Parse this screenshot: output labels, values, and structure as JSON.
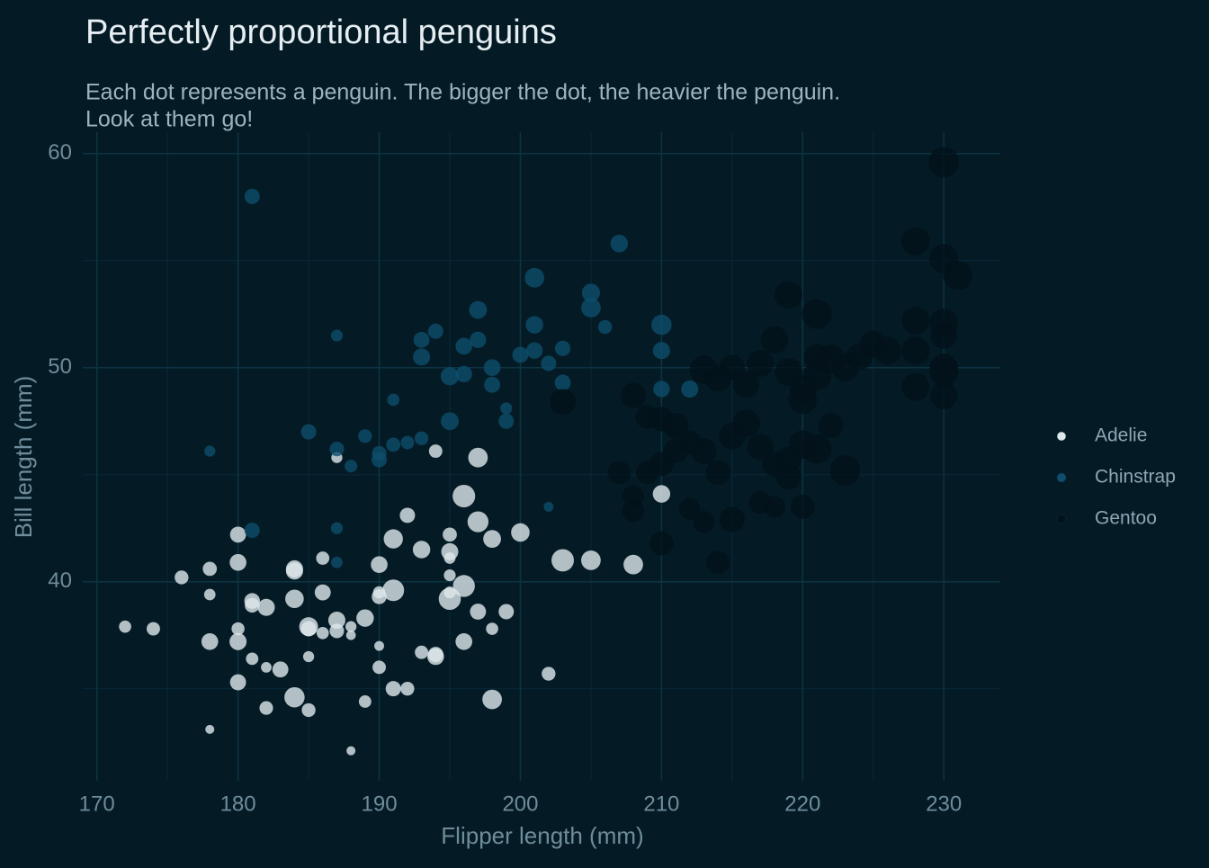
{
  "chart_data": {
    "type": "scatter",
    "title": "Perfectly proportional penguins",
    "subtitle": [
      "Each dot represents a penguin. The bigger the dot, the heavier the penguin.",
      "Look at them go!"
    ],
    "x_label": "Flipper length (mm)",
    "y_label": "Bill length (mm)",
    "xlim": [
      169,
      234
    ],
    "ylim": [
      30.7,
      61
    ],
    "xticks": [
      170,
      180,
      190,
      200,
      210,
      220,
      230
    ],
    "yticks": [
      40,
      50,
      60
    ],
    "grid": true,
    "minor_grid": true,
    "legend": "right",
    "background": "#041b26",
    "series": [
      {
        "name": "Adelie",
        "color": "#dfe8ec",
        "x": [
          181,
          186,
          195,
          193,
          190,
          181,
          195,
          182,
          191,
          198,
          185,
          195,
          197,
          184,
          194,
          174,
          180,
          189,
          185,
          180,
          187,
          183,
          187,
          172,
          180,
          178,
          178,
          188,
          184,
          195,
          196,
          190,
          180,
          181,
          184,
          182,
          195,
          186,
          196,
          185,
          190,
          182,
          190,
          191,
          186,
          188,
          190,
          200,
          176,
          191,
          198,
          185,
          195,
          197,
          184,
          194,
          180,
          178,
          188,
          178,
          205,
          208,
          210,
          203,
          202,
          199,
          198,
          192,
          193,
          196,
          189,
          192,
          194,
          187,
          197
        ],
        "values": [
          39.1,
          39.5,
          40.3,
          36.7,
          39.3,
          38.9,
          39.2,
          34.1,
          42,
          37.8,
          37.8,
          41.1,
          38.6,
          34.6,
          36.6,
          37.8,
          42.2,
          34.4,
          37.9,
          37.8,
          37.7,
          35.9,
          38.2,
          37.9,
          35.3,
          40.6,
          39.4,
          37.9,
          40.5,
          39.5,
          37.2,
          39.5,
          40.9,
          36.4,
          39.2,
          38.8,
          42.2,
          37.6,
          39.8,
          36.5,
          40.8,
          36,
          37,
          39.6,
          41.1,
          37.5,
          36,
          42.3,
          40.2,
          35,
          42,
          34,
          41.4,
          42.8,
          40.6,
          36.5,
          37.2,
          37.2,
          32.1,
          33.1,
          41,
          40.8,
          44.1,
          41,
          35.7,
          38.6,
          34.5,
          43.1,
          41.5,
          44,
          38.3,
          35,
          46.1,
          45.8,
          45.8
        ],
        "sizes": [
          3750,
          3800,
          3250,
          3450,
          3650,
          3625,
          4675,
          3475,
          4250,
          3300,
          3700,
          3200,
          3800,
          4400,
          3700,
          3450,
          3800,
          3325,
          4200,
          3400,
          3600,
          3800,
          3950,
          3300,
          3800,
          3550,
          3200,
          3150,
          3950,
          3250,
          3900,
          3300,
          3900,
          3325,
          4150,
          3950,
          3550,
          3300,
          4650,
          3150,
          3900,
          3100,
          3000,
          4600,
          3425,
          2975,
          3450,
          4150,
          3500,
          3700,
          4050,
          3500,
          3950,
          4500,
          3950,
          3900,
          3950,
          3900,
          2900,
          2900,
          4300,
          4300,
          4000,
          4725,
          3500,
          3700,
          4300,
          3700,
          4000,
          4750,
          4000,
          3500,
          3450,
          3150,
          4300
        ]
      },
      {
        "name": "Chinstrap",
        "color": "#0e4e6c",
        "x": [
          181,
          187,
          178,
          185,
          187,
          188,
          189,
          190,
          191,
          192,
          193,
          193,
          193,
          194,
          195,
          195,
          196,
          196,
          197,
          197,
          198,
          198,
          199,
          199,
          200,
          201,
          201,
          201,
          202,
          203,
          203,
          205,
          205,
          206,
          207,
          210,
          210,
          210,
          212,
          181,
          187,
          202,
          191,
          187,
          190
        ],
        "values": [
          58,
          51.5,
          46.1,
          47,
          46.2,
          45.4,
          46.8,
          46,
          46.4,
          46.5,
          46.7,
          50.5,
          51.3,
          51.7,
          49.6,
          47.5,
          51,
          49.7,
          52.7,
          51.3,
          50,
          49.2,
          48.1,
          47.5,
          50.6,
          54.2,
          50.8,
          52,
          50.2,
          50.9,
          49.3,
          53.5,
          52.8,
          51.9,
          55.8,
          52,
          50.8,
          49,
          49,
          42.4,
          42.5,
          43.5,
          48.5,
          40.9,
          45.7
        ],
        "sizes": [
          3700,
          3250,
          3150,
          3700,
          3600,
          3350,
          3500,
          3600,
          3550,
          3450,
          3500,
          3950,
          3800,
          3700,
          4100,
          4050,
          3900,
          3850,
          4050,
          3850,
          3900,
          3800,
          3250,
          3700,
          3800,
          4300,
          3850,
          4000,
          3700,
          3725,
          3800,
          4100,
          4300,
          3500,
          4000,
          4400,
          3950,
          3850,
          3950,
          3700,
          3250,
          3000,
          3300,
          3200,
          3700
        ]
      },
      {
        "name": "Gentoo",
        "color": "#02121a",
        "x": [
          230,
          228,
          230,
          231,
          219,
          221,
          228,
          230,
          230,
          228,
          230,
          230,
          228,
          230,
          225,
          226,
          224,
          222,
          223,
          221,
          220,
          215,
          214,
          213,
          208,
          209,
          210,
          211,
          212,
          213,
          214,
          215,
          216,
          217,
          218,
          219,
          220,
          221,
          222,
          223,
          219,
          217,
          218,
          220,
          210,
          214,
          213,
          212,
          208,
          207,
          208,
          209,
          210,
          211,
          215,
          216,
          203,
          217,
          218,
          219,
          220,
          221
        ],
        "values": [
          59.6,
          55.9,
          55.1,
          54.3,
          53.4,
          52.5,
          52.2,
          52.1,
          51.5,
          50.8,
          50,
          49.8,
          49.1,
          48.7,
          51.1,
          50.8,
          50.5,
          50.4,
          50,
          49.6,
          49,
          50,
          49.5,
          49.9,
          48.7,
          47.7,
          47.6,
          47.3,
          46.5,
          46.1,
          45.1,
          46.8,
          47.4,
          46.3,
          45.5,
          44.9,
          46.4,
          46.2,
          47.3,
          45.2,
          45.7,
          43.7,
          43.5,
          43.5,
          41.8,
          40.9,
          42.8,
          43.4,
          43.3,
          45.1,
          44,
          45.1,
          45.5,
          46.1,
          42.9,
          49.2,
          48.4,
          50.2,
          51.3,
          49.8,
          48.5,
          50.5
        ],
        "sizes": [
          6050,
          5700,
          5800,
          5850,
          5600,
          5950,
          5550,
          5650,
          5400,
          5650,
          5700,
          5800,
          5600,
          5500,
          5500,
          5600,
          5400,
          5800,
          5500,
          5700,
          5350,
          5200,
          5400,
          5700,
          5200,
          4950,
          5050,
          5250,
          4900,
          5300,
          5100,
          5400,
          5600,
          5350,
          5100,
          5200,
          5700,
          5850,
          5200,
          6000,
          5250,
          4750,
          4600,
          5000,
          5000,
          4900,
          4650,
          4600,
          4700,
          4875,
          4625,
          4800,
          4950,
          5050,
          5200,
          5350,
          5300,
          5450,
          5550,
          5650,
          5750,
          5300
        ]
      }
    ]
  }
}
